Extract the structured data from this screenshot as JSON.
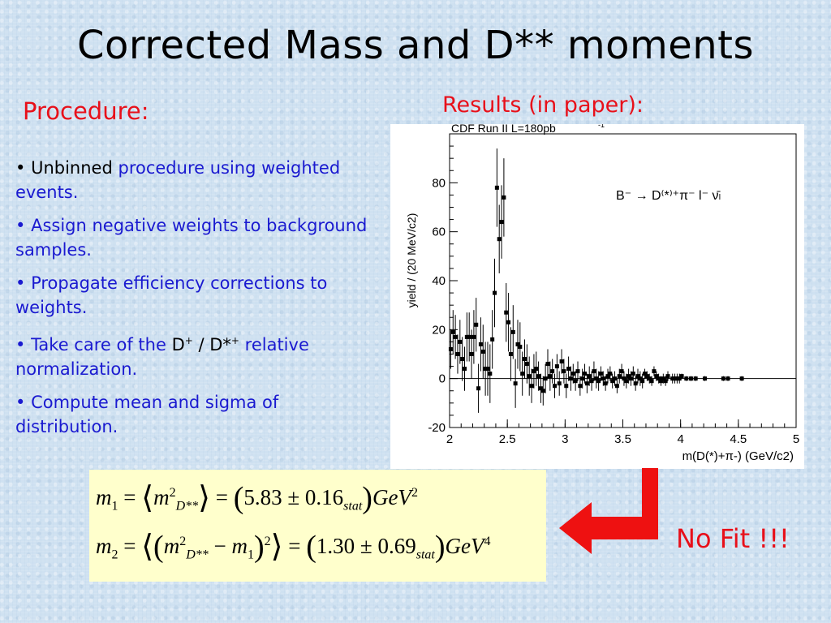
{
  "title": "Corrected Mass and D** moments",
  "procedure_heading": "Procedure:",
  "results_heading": "Results (in paper):",
  "bullets": [
    {
      "marker": "•",
      "black": "Unbinned",
      "blue": "procedure using weighted events."
    },
    {
      "marker": "•",
      "text": "Assign negative weights to background samples."
    },
    {
      "marker": "•",
      "text": "Propagate efficiency corrections to weights."
    },
    {
      "marker": "•",
      "pre": "Take care of the",
      "d": "D",
      "dsup": "+",
      "slash": " / ",
      "dstar": "D*",
      "dstarsup": "+",
      "post": "relative normalization."
    },
    {
      "marker": "•",
      "text": "Compute mean and sigma of distribution."
    }
  ],
  "formula": {
    "m1": "m",
    "m1_sub": "1",
    "m1_val": "5.83",
    "m1_err": "0.16",
    "m2_sub": "2",
    "m2_val": "1.30",
    "m2_err": "0.69",
    "stat": "stat",
    "unit": "GeV",
    "pow1": "2",
    "pow2": "4",
    "dss": "D**"
  },
  "no_fit": "No Fit !!!",
  "colors": {
    "heading_red": "#e8101a",
    "bullet_blue": "#1a1ad0",
    "formula_bg": "#ffffcc",
    "arrow_red": "#ee1111"
  },
  "chart_data": {
    "type": "scatter",
    "header": "CDF Run II   L=180pb",
    "header_sup": "-1",
    "ylabel": "yield / (20 MeV/c",
    "ylabel_sup": "2",
    "ylabel_end": ")",
    "xlabel": "m(D",
    "xlabel_sup": "(*)+",
    "xlabel_mid": "π",
    "xlabel_mid_sup": "-",
    "xlabel_end": ") (GeV/c",
    "xlabel_end_sup": "2",
    "xlabel_close": ")",
    "decay_label": "B⁻ → D⁽*⁾⁺π⁻ l⁻ ν̄ₗ",
    "xlim": [
      2,
      5
    ],
    "ylim": [
      -20,
      100
    ],
    "xticks": [
      "2",
      "2.5",
      "3",
      "3.5",
      "4",
      "4.5",
      "5"
    ],
    "xtick_vals": [
      2,
      2.5,
      3,
      3.5,
      4,
      4.5,
      5
    ],
    "yticks": [
      "-20",
      "0",
      "20",
      "40",
      "60",
      "80"
    ],
    "ytick_vals": [
      -20,
      0,
      20,
      40,
      60,
      80
    ],
    "points": [
      [
        2.01,
        12,
        8
      ],
      [
        2.03,
        19,
        9
      ],
      [
        2.05,
        17,
        9
      ],
      [
        2.07,
        10,
        8
      ],
      [
        2.09,
        15,
        9
      ],
      [
        2.11,
        8,
        9
      ],
      [
        2.13,
        4,
        9
      ],
      [
        2.15,
        17,
        10
      ],
      [
        2.17,
        17,
        10
      ],
      [
        2.19,
        10,
        10
      ],
      [
        2.21,
        17,
        11
      ],
      [
        2.23,
        22,
        11
      ],
      [
        2.25,
        -4,
        10
      ],
      [
        2.27,
        14,
        11
      ],
      [
        2.29,
        11,
        11
      ],
      [
        2.31,
        4,
        11
      ],
      [
        2.33,
        4,
        11
      ],
      [
        2.35,
        2,
        12
      ],
      [
        2.37,
        16,
        12
      ],
      [
        2.39,
        35,
        14
      ],
      [
        2.41,
        78,
        16
      ],
      [
        2.43,
        57,
        14
      ],
      [
        2.45,
        64,
        15
      ],
      [
        2.47,
        74,
        16
      ],
      [
        2.49,
        27,
        12
      ],
      [
        2.51,
        23,
        12
      ],
      [
        2.53,
        10,
        11
      ],
      [
        2.55,
        19,
        11
      ],
      [
        2.57,
        -2,
        10
      ],
      [
        2.59,
        14,
        10
      ],
      [
        2.61,
        13,
        10
      ],
      [
        2.63,
        2,
        9
      ],
      [
        2.65,
        8,
        8
      ],
      [
        2.67,
        6,
        8
      ],
      [
        2.69,
        1,
        8
      ],
      [
        2.71,
        -3,
        7
      ],
      [
        2.73,
        3,
        7
      ],
      [
        2.75,
        4,
        7
      ],
      [
        2.77,
        1,
        6
      ],
      [
        2.79,
        -4,
        6
      ],
      [
        2.81,
        -5,
        6
      ],
      [
        2.83,
        0,
        6
      ],
      [
        2.85,
        6,
        6
      ],
      [
        2.87,
        1,
        6
      ],
      [
        2.89,
        3,
        5
      ],
      [
        2.91,
        -3,
        5
      ],
      [
        2.93,
        5,
        5
      ],
      [
        2.95,
        -2,
        5
      ],
      [
        2.97,
        7,
        5
      ],
      [
        2.99,
        3,
        5
      ],
      [
        3.01,
        -3,
        5
      ],
      [
        3.03,
        4,
        5
      ],
      [
        3.05,
        0,
        5
      ],
      [
        3.07,
        2,
        4
      ],
      [
        3.09,
        -1,
        4
      ],
      [
        3.11,
        3,
        4
      ],
      [
        3.13,
        -3,
        4
      ],
      [
        3.15,
        0,
        4
      ],
      [
        3.17,
        2,
        4
      ],
      [
        3.19,
        -2,
        4
      ],
      [
        3.21,
        1,
        4
      ],
      [
        3.23,
        -1,
        4
      ],
      [
        3.25,
        3,
        4
      ],
      [
        3.27,
        0,
        4
      ],
      [
        3.29,
        -1,
        4
      ],
      [
        3.31,
        2,
        3
      ],
      [
        3.33,
        0,
        3
      ],
      [
        3.35,
        -2,
        3
      ],
      [
        3.37,
        1,
        3
      ],
      [
        3.39,
        2,
        3
      ],
      [
        3.41,
        -1,
        3
      ],
      [
        3.43,
        0,
        3
      ],
      [
        3.45,
        -3,
        3
      ],
      [
        3.47,
        1,
        3
      ],
      [
        3.49,
        3,
        3
      ],
      [
        3.51,
        0,
        3
      ],
      [
        3.53,
        -1,
        3
      ],
      [
        3.55,
        1,
        3
      ],
      [
        3.57,
        0,
        3
      ],
      [
        3.59,
        2,
        3
      ],
      [
        3.61,
        -2,
        3
      ],
      [
        3.63,
        1,
        3
      ],
      [
        3.65,
        0,
        3
      ],
      [
        3.67,
        -1,
        3
      ],
      [
        3.69,
        2,
        2
      ],
      [
        3.71,
        1,
        2
      ],
      [
        3.73,
        0,
        2
      ],
      [
        3.75,
        -1,
        2
      ],
      [
        3.77,
        3,
        2
      ],
      [
        3.79,
        1,
        2
      ],
      [
        3.81,
        0,
        2
      ],
      [
        3.83,
        -1,
        2
      ],
      [
        3.85,
        0,
        2
      ],
      [
        3.87,
        -1,
        2
      ],
      [
        3.89,
        1,
        2
      ],
      [
        3.93,
        0,
        2
      ],
      [
        3.95,
        0,
        2
      ],
      [
        3.97,
        0,
        2
      ],
      [
        3.99,
        0,
        2
      ],
      [
        4.01,
        1,
        1
      ],
      [
        4.05,
        0,
        1
      ],
      [
        4.09,
        0,
        1
      ],
      [
        4.13,
        0,
        1
      ],
      [
        4.21,
        0,
        1
      ],
      [
        4.37,
        0,
        1
      ],
      [
        4.41,
        0,
        1
      ],
      [
        4.53,
        0,
        1
      ]
    ]
  }
}
